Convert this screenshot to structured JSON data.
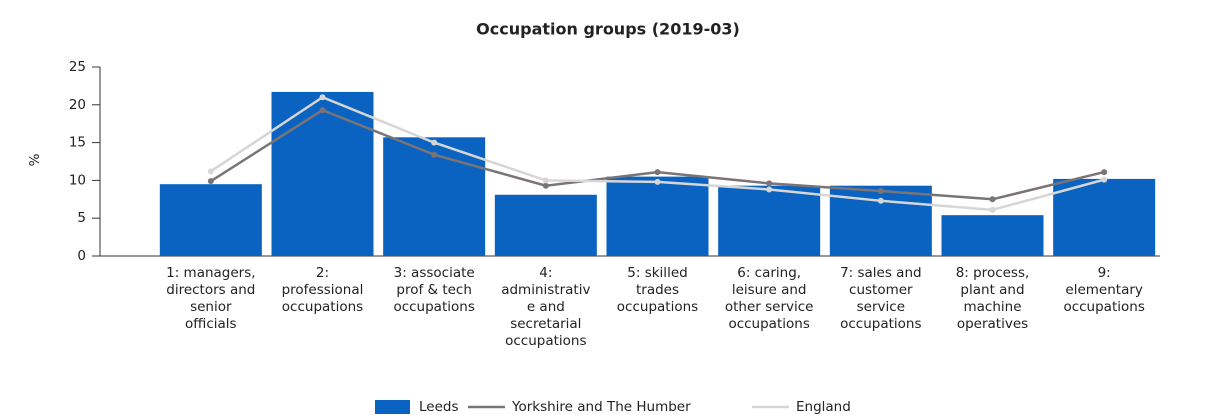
{
  "chart_data": {
    "type": "bar",
    "title": "Occupation groups (2019-03)",
    "y_label": "%",
    "categories": [
      [
        "1: managers,",
        "directors and",
        "senior",
        "officials"
      ],
      [
        "2:",
        "professional",
        "occupations"
      ],
      [
        "3: associate",
        "prof & tech",
        "occupations"
      ],
      [
        "4:",
        "administrativ",
        "e and",
        "secretarial",
        "occupations"
      ],
      [
        "5: skilled",
        "trades",
        "occupations"
      ],
      [
        "6: caring,",
        "leisure and",
        "other service",
        "occupations"
      ],
      [
        "7: sales and",
        "customer",
        "service",
        "occupations"
      ],
      [
        "8: process,",
        "plant and",
        "machine",
        "operatives"
      ],
      [
        "9:",
        "elementary",
        "occupations"
      ]
    ],
    "series": [
      {
        "name": "Leeds",
        "type": "bar",
        "color": "#0b63c1",
        "values": [
          9.5,
          21.7,
          15.7,
          8.1,
          10.5,
          9.3,
          9.3,
          5.4,
          10.2
        ]
      },
      {
        "name": "Yorkshire and The Humber",
        "type": "line",
        "color": "#7a7476",
        "values": [
          9.9,
          19.3,
          13.4,
          9.3,
          11.1,
          9.6,
          8.6,
          7.5,
          11.1
        ]
      },
      {
        "name": "England",
        "type": "line",
        "color": "#d6d6d6",
        "values": [
          11.2,
          21.0,
          15.0,
          10.0,
          9.8,
          8.8,
          7.3,
          6.1,
          10.1
        ]
      }
    ],
    "ylim": [
      0,
      25
    ],
    "yticks": [
      0,
      5,
      10,
      15,
      20,
      25
    ],
    "legend": "bottom"
  }
}
